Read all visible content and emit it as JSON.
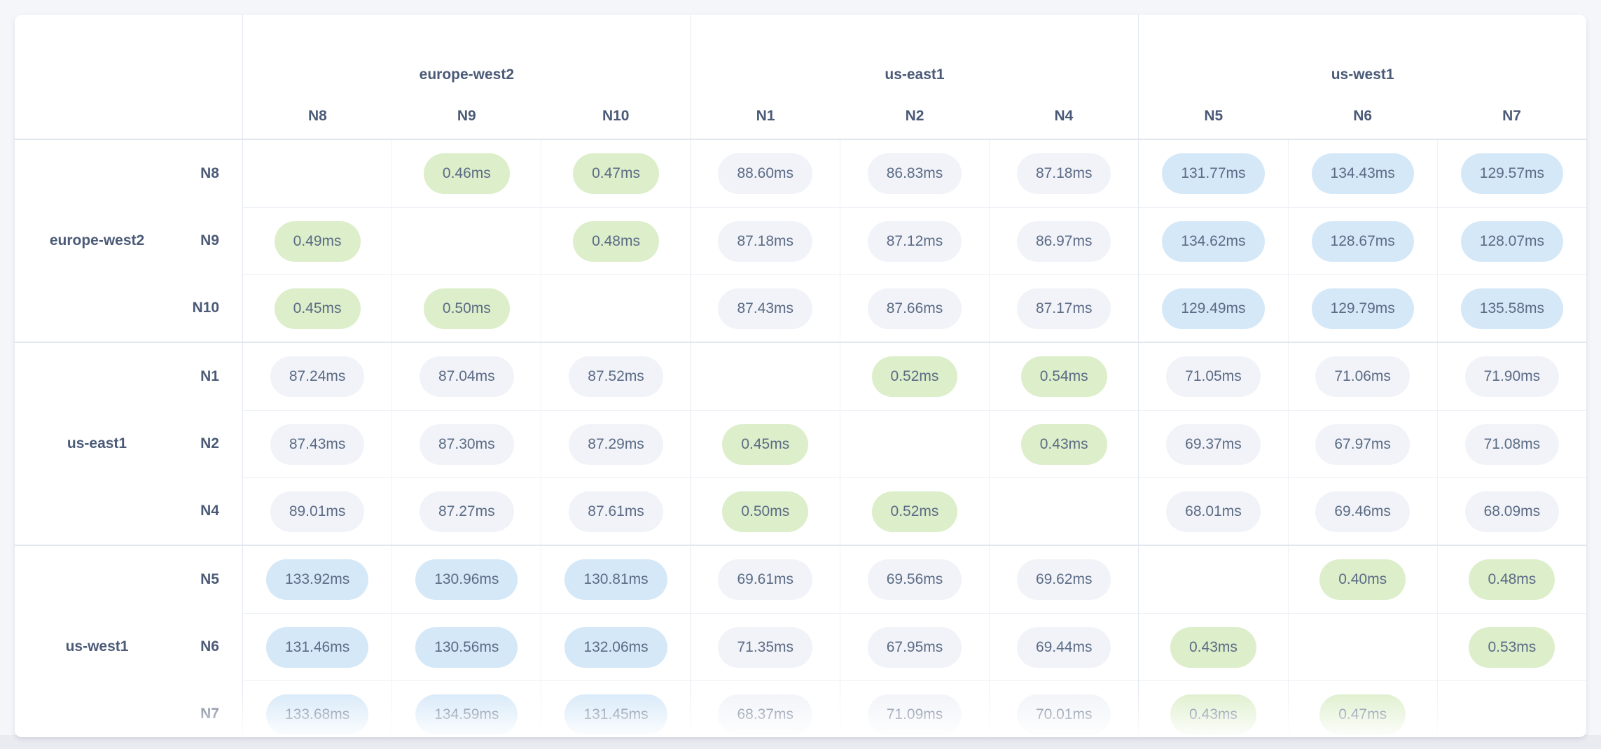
{
  "colors": {
    "card_bg": "#ffffff",
    "pill_green": "#ddeeca",
    "pill_blue": "#d5e8f8",
    "pill_gray": "#f1f3f8",
    "value_text": "#5b6b85",
    "label_text": "#4b5a77",
    "border_light": "#eef1f6",
    "border_group": "#e2e6ee"
  },
  "matrix": {
    "unit": "ms",
    "column_groups": [
      {
        "label": "europe-west2",
        "nodes": [
          "N8",
          "N9",
          "N10"
        ]
      },
      {
        "label": "us-east1",
        "nodes": [
          "N1",
          "N2",
          "N4"
        ]
      },
      {
        "label": "us-west1",
        "nodes": [
          "N5",
          "N6",
          "N7"
        ]
      }
    ],
    "row_groups": [
      {
        "label": "europe-west2",
        "rows": [
          {
            "node": "N8",
            "cells": [
              "",
              "0.46ms",
              "0.47ms",
              "88.60ms",
              "86.83ms",
              "87.18ms",
              "131.77ms",
              "134.43ms",
              "129.57ms"
            ]
          },
          {
            "node": "N9",
            "cells": [
              "0.49ms",
              "",
              "0.48ms",
              "87.18ms",
              "87.12ms",
              "86.97ms",
              "134.62ms",
              "128.67ms",
              "128.07ms"
            ]
          },
          {
            "node": "N10",
            "cells": [
              "0.45ms",
              "0.50ms",
              "",
              "87.43ms",
              "87.66ms",
              "87.17ms",
              "129.49ms",
              "129.79ms",
              "135.58ms"
            ]
          }
        ]
      },
      {
        "label": "us-east1",
        "rows": [
          {
            "node": "N1",
            "cells": [
              "87.24ms",
              "87.04ms",
              "87.52ms",
              "",
              "0.52ms",
              "0.54ms",
              "71.05ms",
              "71.06ms",
              "71.90ms"
            ]
          },
          {
            "node": "N2",
            "cells": [
              "87.43ms",
              "87.30ms",
              "87.29ms",
              "0.45ms",
              "",
              "0.43ms",
              "69.37ms",
              "67.97ms",
              "71.08ms"
            ]
          },
          {
            "node": "N4",
            "cells": [
              "89.01ms",
              "87.27ms",
              "87.61ms",
              "0.50ms",
              "0.52ms",
              "",
              "68.01ms",
              "69.46ms",
              "68.09ms"
            ]
          }
        ]
      },
      {
        "label": "us-west1",
        "rows": [
          {
            "node": "N5",
            "cells": [
              "133.92ms",
              "130.96ms",
              "130.81ms",
              "69.61ms",
              "69.56ms",
              "69.62ms",
              "",
              "0.40ms",
              "0.48ms"
            ]
          },
          {
            "node": "N6",
            "cells": [
              "131.46ms",
              "130.56ms",
              "132.06ms",
              "71.35ms",
              "67.95ms",
              "69.44ms",
              "0.43ms",
              "",
              "0.53ms"
            ]
          },
          {
            "node": "N7",
            "cells": [
              "133.68ms",
              "134.59ms",
              "131.45ms",
              "68.37ms",
              "71.09ms",
              "70.01ms",
              "0.43ms",
              "0.47ms",
              ""
            ]
          }
        ]
      }
    ]
  }
}
